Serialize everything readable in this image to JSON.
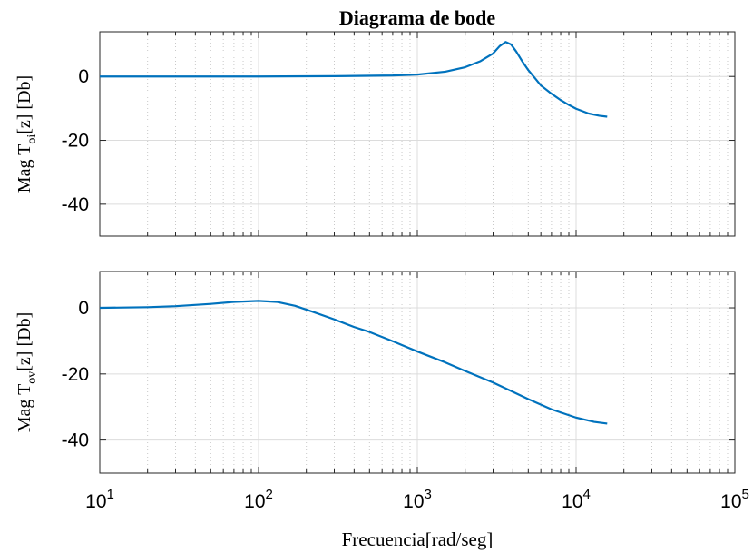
{
  "chart_data": [
    {
      "type": "line",
      "title": "Diagrama de bode",
      "ylabel": {
        "main": "Mag T",
        "sub": "oi",
        "rest": "[z] [Db]"
      },
      "xlabel": "",
      "xscale": "log",
      "xlim": [
        10,
        100000
      ],
      "ylim": [
        -50,
        14
      ],
      "yticks": [
        0,
        -20,
        -40
      ],
      "grid": true,
      "series": [
        {
          "color": "#0072BD",
          "x": [
            10,
            100,
            300,
            700,
            1000,
            1500,
            2000,
            2500,
            3000,
            3300,
            3600,
            3900,
            4200,
            4600,
            5000,
            5500,
            6000,
            7000,
            8000,
            9000,
            10000,
            12000,
            14000,
            15700
          ],
          "y": [
            0,
            0,
            0.1,
            0.3,
            0.6,
            1.5,
            2.9,
            4.8,
            7.2,
            9.5,
            10.8,
            10.0,
            7.8,
            4.6,
            2.0,
            -0.5,
            -2.8,
            -5.4,
            -7.4,
            -8.9,
            -10.1,
            -11.6,
            -12.3,
            -12.6
          ]
        }
      ]
    },
    {
      "type": "line",
      "title": "",
      "ylabel": {
        "main": "Mag T",
        "sub": "ov",
        "rest": "[z] [Db]"
      },
      "xlabel": "Frecuencia[rad/seg]",
      "xscale": "log",
      "xlim": [
        10,
        100000
      ],
      "ylim": [
        -50,
        11
      ],
      "yticks": [
        0,
        -20,
        -40
      ],
      "xticks": [
        {
          "base": "10",
          "exp": "1"
        },
        {
          "base": "10",
          "exp": "2"
        },
        {
          "base": "10",
          "exp": "3"
        },
        {
          "base": "10",
          "exp": "4"
        },
        {
          "base": "10",
          "exp": "5"
        }
      ],
      "grid": true,
      "series": [
        {
          "color": "#0072BD",
          "x": [
            10,
            20,
            30,
            50,
            70,
            100,
            130,
            170,
            220,
            300,
            400,
            500,
            700,
            1000,
            1500,
            2000,
            3000,
            4000,
            5000,
            7000,
            10000,
            13000,
            15700
          ],
          "y": [
            0,
            0.2,
            0.5,
            1.2,
            1.8,
            2.1,
            1.8,
            0.6,
            -1.2,
            -3.5,
            -5.8,
            -7.3,
            -10.1,
            -13.2,
            -16.5,
            -19.1,
            -22.6,
            -25.4,
            -27.6,
            -30.7,
            -33.2,
            -34.5,
            -35.0
          ]
        }
      ]
    }
  ]
}
